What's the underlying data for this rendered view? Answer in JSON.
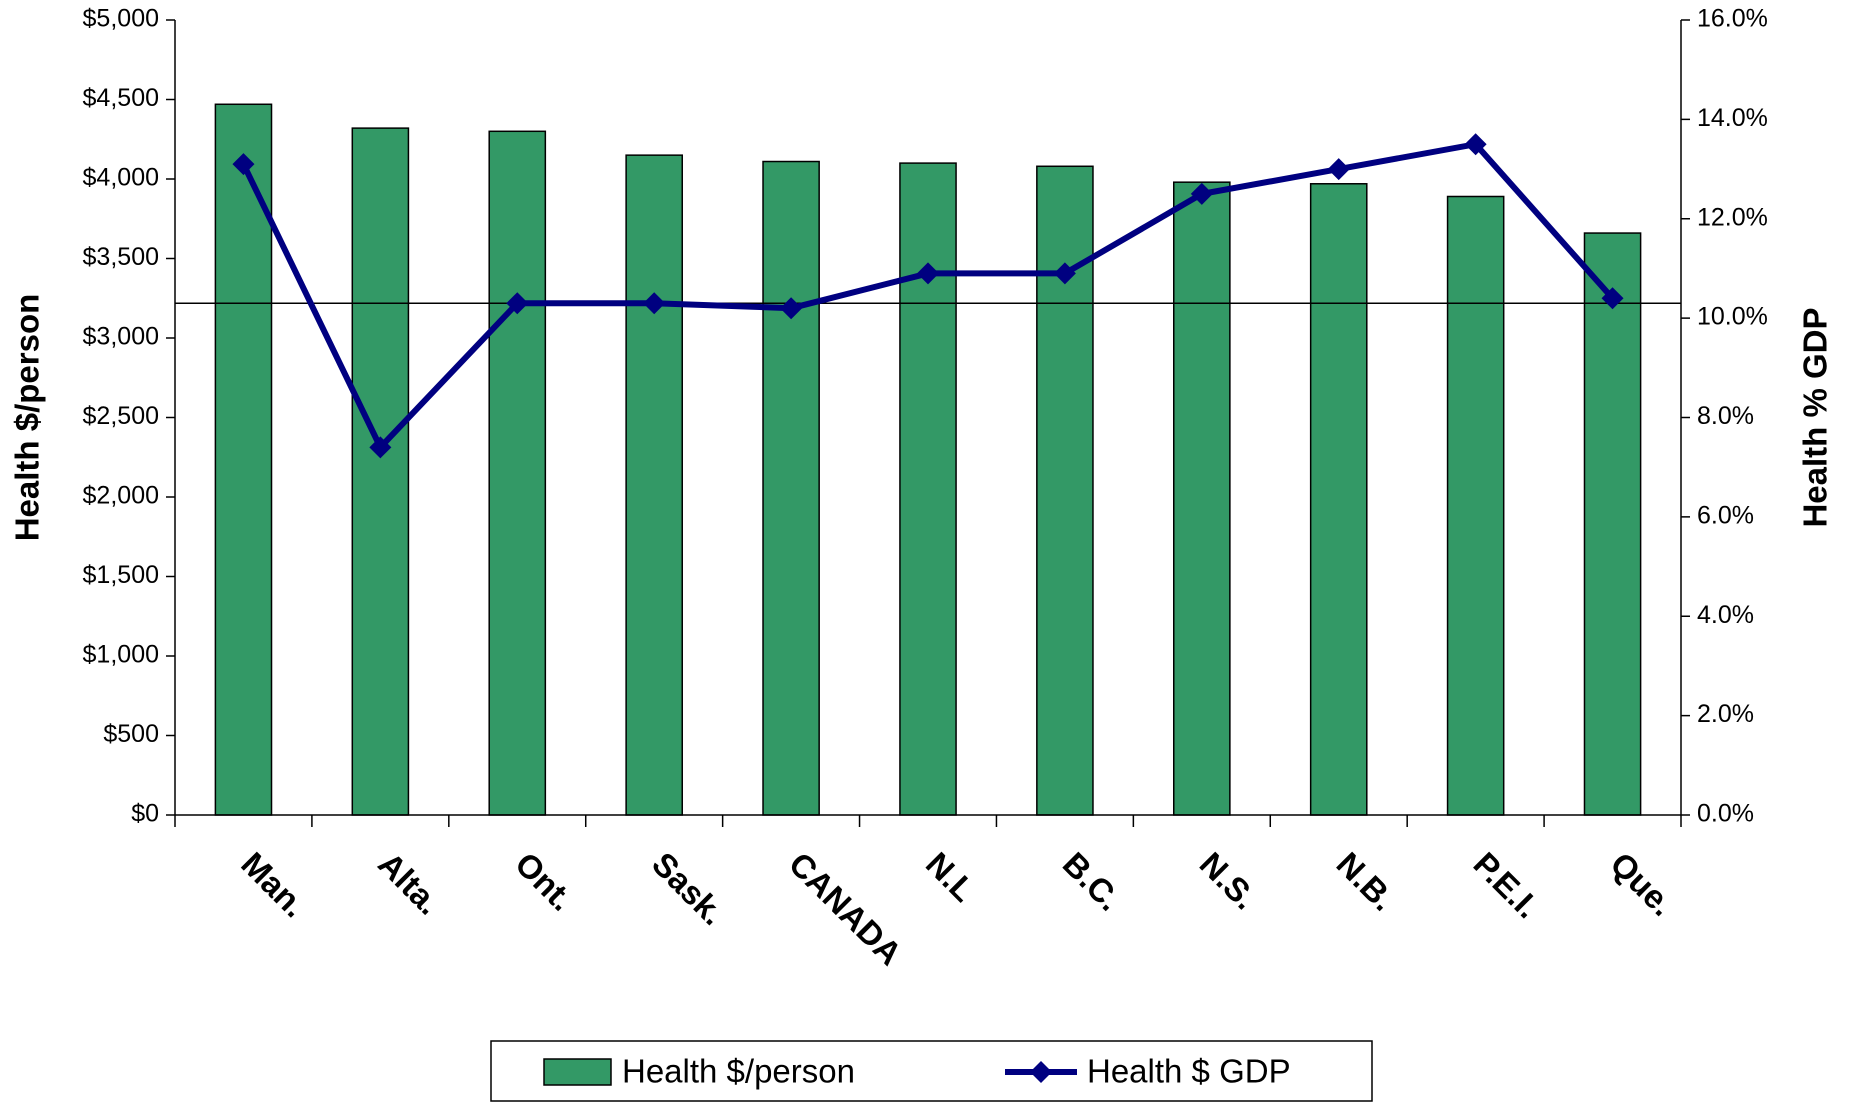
{
  "chart_data": {
    "type": "bar",
    "categories": [
      "Man.",
      "Alta.",
      "Ont.",
      "Sask.",
      "CANADA",
      "N.L",
      "B.C.",
      "N.S.",
      "N.B.",
      "P.E.I.",
      "Que."
    ],
    "series": [
      {
        "name": "Health $/person",
        "type": "bar",
        "color": "#339966",
        "values": [
          4470,
          4320,
          4300,
          4150,
          4110,
          4100,
          4080,
          3980,
          3970,
          3890,
          3660
        ]
      },
      {
        "name": "Health $ GDP",
        "type": "line",
        "axis": "y2",
        "color": "#000080",
        "values": [
          13.1,
          7.4,
          10.3,
          10.3,
          10.2,
          10.9,
          10.9,
          12.5,
          13.0,
          13.5,
          10.4
        ]
      }
    ],
    "ylabel": "Health $/person",
    "y2label": "Health % GDP",
    "ylim": [
      0,
      5000
    ],
    "yticks": [
      {
        "value": 0,
        "label": "$0"
      },
      {
        "value": 500,
        "label": "$500"
      },
      {
        "value": 1000,
        "label": "$1,000"
      },
      {
        "value": 1500,
        "label": "$1,500"
      },
      {
        "value": 2000,
        "label": "$2,000"
      },
      {
        "value": 2500,
        "label": "$2,500"
      },
      {
        "value": 3000,
        "label": "$3,000"
      },
      {
        "value": 3500,
        "label": "$3,500"
      },
      {
        "value": 4000,
        "label": "$4,000"
      },
      {
        "value": 4500,
        "label": "$4,500"
      },
      {
        "value": 5000,
        "label": "$5,000"
      }
    ],
    "y2lim": [
      0,
      16
    ],
    "y2ticks": [
      {
        "value": 0,
        "label": "0.0%"
      },
      {
        "value": 2,
        "label": "2.0%"
      },
      {
        "value": 4,
        "label": "4.0%"
      },
      {
        "value": 6,
        "label": "6.0%"
      },
      {
        "value": 8,
        "label": "8.0%"
      },
      {
        "value": 10,
        "label": "10.0%"
      },
      {
        "value": 12,
        "label": "12.0%"
      },
      {
        "value": 14,
        "label": "14.0%"
      },
      {
        "value": 16,
        "label": "16.0%"
      }
    ],
    "reference_line": {
      "value": 10.3,
      "axis": "y2"
    },
    "legend": "bottom"
  }
}
